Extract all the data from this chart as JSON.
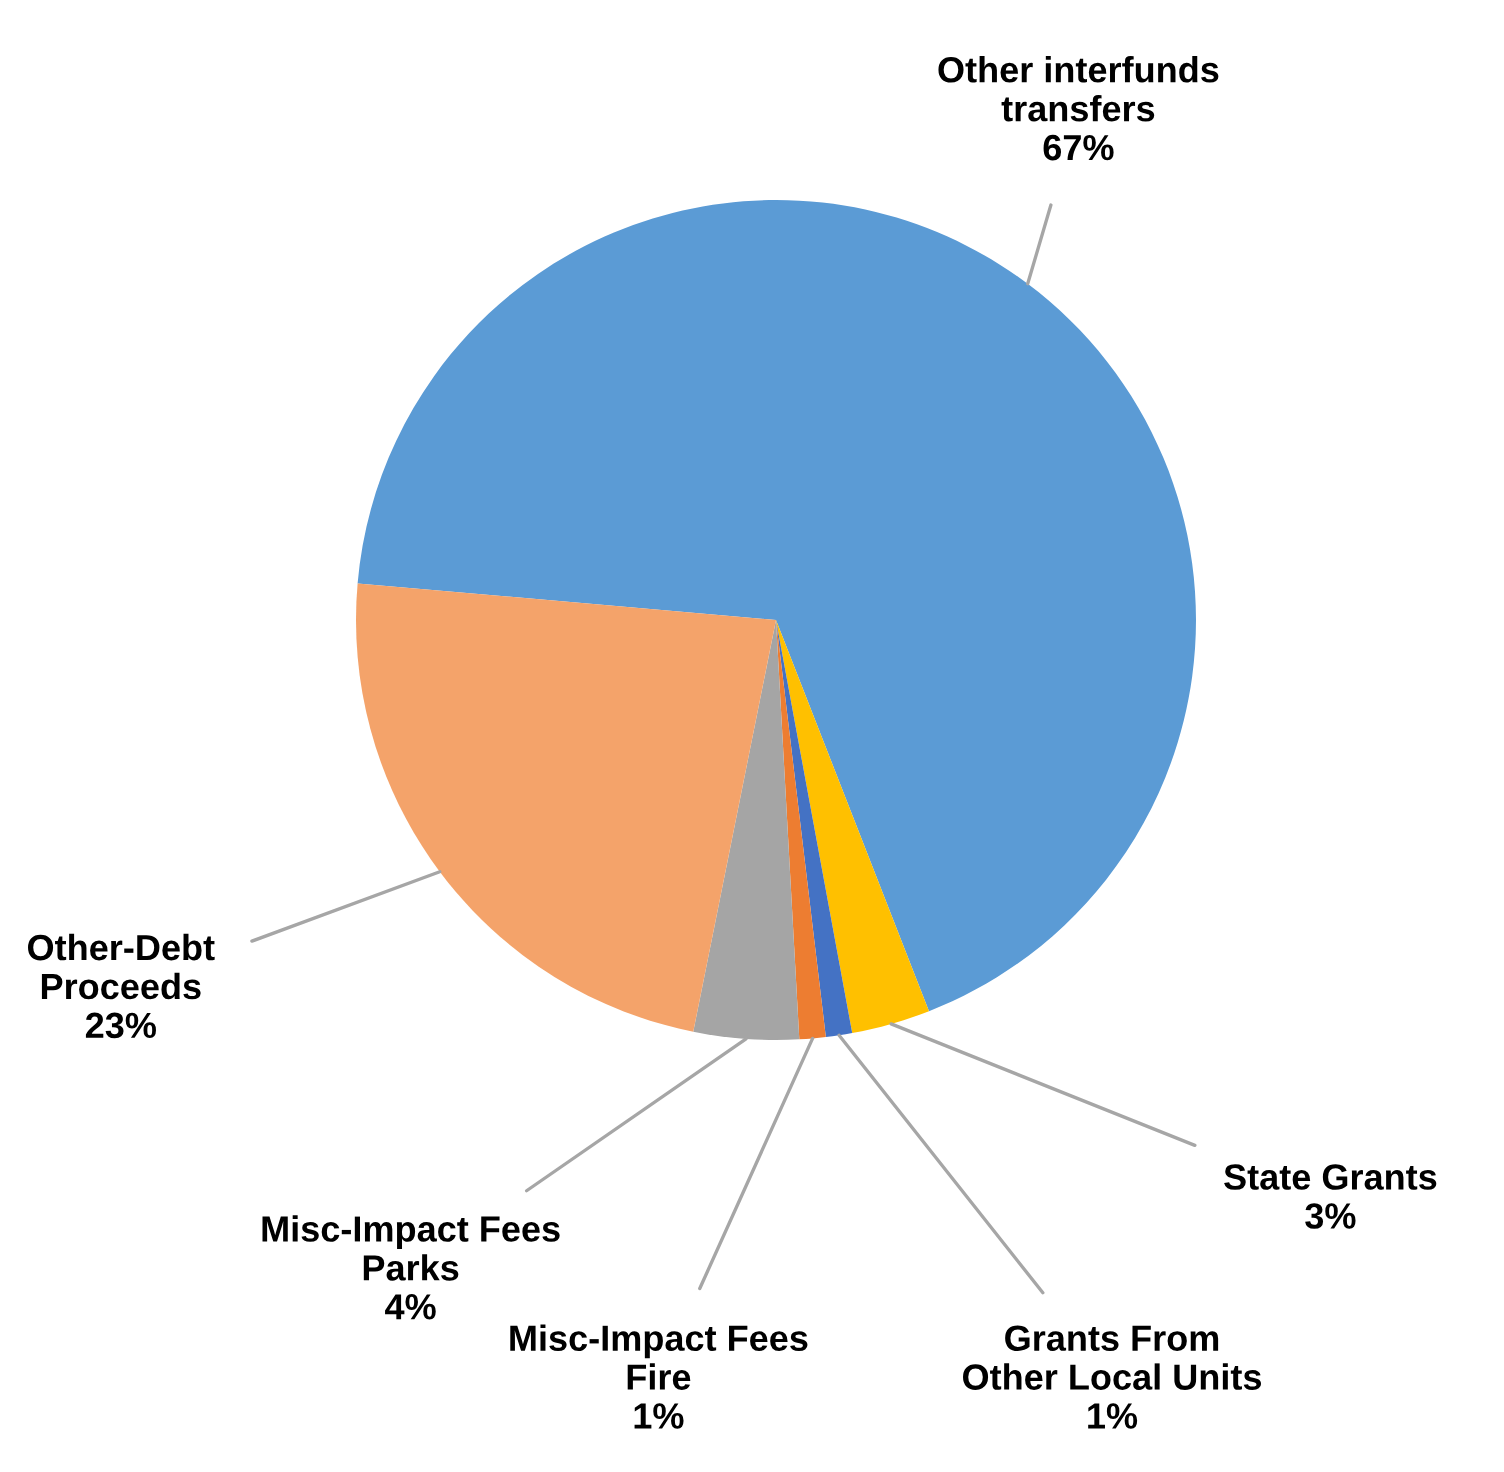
{
  "chart_data": {
    "type": "pie",
    "categories": [
      "Other interfunds\ntransfers",
      "State Grants",
      "Grants From\nOther Local Units",
      "Misc-Impact Fees\nFire",
      "Misc-Impact Fees\nParks",
      "Other-Debt\nProceeds"
    ],
    "values": [
      67,
      3,
      1,
      1,
      4,
      23
    ],
    "value_labels": [
      "67%",
      "3%",
      "1%",
      "1%",
      "4%",
      "23%"
    ],
    "colors": [
      "#5b9bd5",
      "#ffc000",
      "#4472c4",
      "#ed7d31",
      "#a5a5a5",
      "#f4a36a"
    ],
    "legend": false
  }
}
